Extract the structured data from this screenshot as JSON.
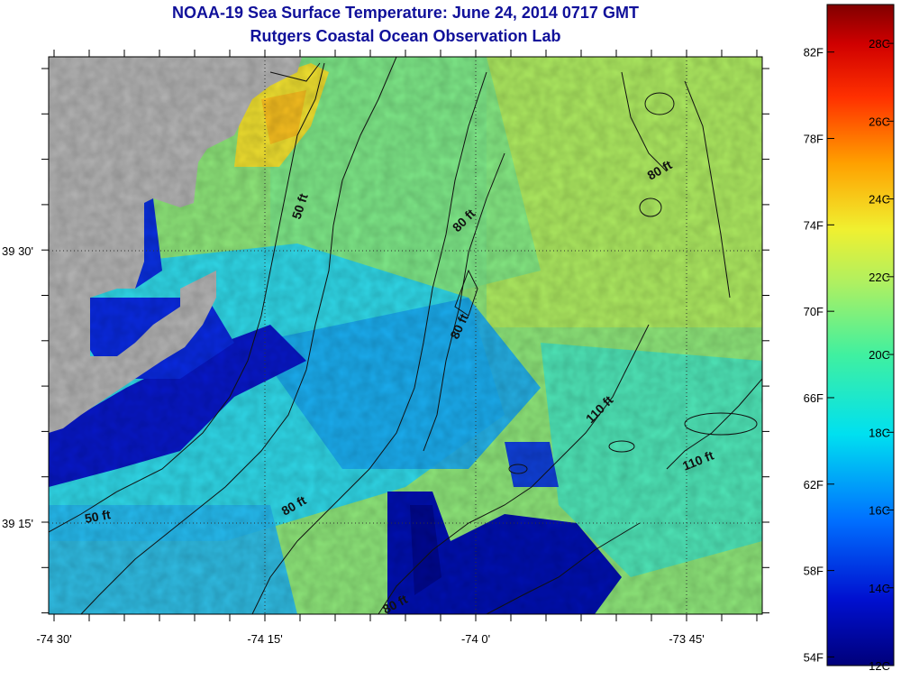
{
  "title": "NOAA-19 Sea Surface Temperature:  June 24, 2014 0717 GMT",
  "subtitle": "Rutgers Coastal Ocean Observation Lab",
  "axes": {
    "x_ticks": [
      "-74 30'",
      "-74 15'",
      "-74 0'",
      "-73 45'"
    ],
    "y_ticks": [
      "39 30'",
      "39 15'"
    ]
  },
  "contour_labels": [
    "50 ft",
    "80 ft",
    "80 ft",
    "80 ft",
    "110 ft",
    "110 ft",
    "50 ft",
    "80 ft",
    "80 ft"
  ],
  "colorbar": {
    "fahrenheit": [
      "82F",
      "78F",
      "74F",
      "70F",
      "66F",
      "62F",
      "58F",
      "54F"
    ],
    "celsius": [
      "28C",
      "26C",
      "24C",
      "22C",
      "20C",
      "18C",
      "16C",
      "14C",
      "12C"
    ],
    "range_c": [
      12,
      29
    ]
  },
  "colors": {
    "land": "#b4b4b4",
    "title": "#10109a"
  }
}
